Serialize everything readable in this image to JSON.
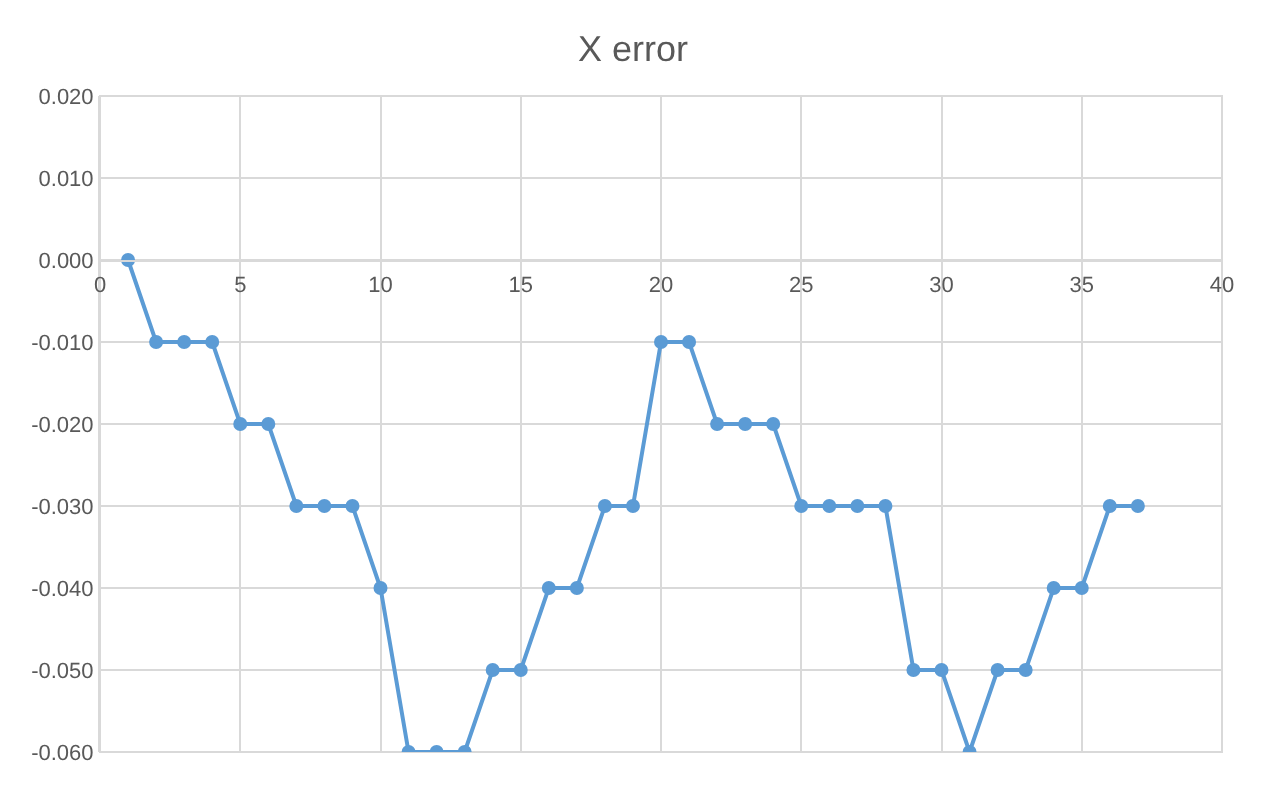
{
  "chart_data": {
    "type": "line",
    "title": "X error",
    "x": [
      1,
      2,
      3,
      4,
      5,
      6,
      7,
      8,
      9,
      10,
      11,
      12,
      13,
      14,
      15,
      16,
      17,
      18,
      19,
      20,
      21,
      22,
      23,
      24,
      25,
      26,
      27,
      28,
      29,
      30,
      31,
      32,
      33,
      34,
      35,
      36,
      37
    ],
    "series": [
      {
        "color": "#5b9bd5",
        "values": [
          0,
          -0.01,
          -0.01,
          -0.01,
          -0.02,
          -0.02,
          -0.03,
          -0.03,
          -0.03,
          -0.04,
          -0.06,
          -0.06,
          -0.06,
          -0.05,
          -0.05,
          -0.04,
          -0.04,
          -0.03,
          -0.03,
          -0.01,
          -0.01,
          -0.02,
          -0.02,
          -0.02,
          -0.03,
          -0.03,
          -0.03,
          -0.03,
          -0.05,
          -0.05,
          -0.06,
          -0.05,
          -0.05,
          -0.04,
          -0.04,
          -0.03,
          -0.03
        ]
      }
    ],
    "xlim": [
      0,
      40
    ],
    "xticks": [
      0,
      5,
      10,
      15,
      20,
      25,
      30,
      35,
      40
    ],
    "ylim": [
      -0.06,
      0.02
    ],
    "yticks": [
      {
        "value": 0.02,
        "label": "0.020"
      },
      {
        "value": 0.01,
        "label": "0.010"
      },
      {
        "value": 0,
        "label": "0.000"
      },
      {
        "value": -0.01,
        "label": "-0.010"
      },
      {
        "value": -0.02,
        "label": "-0.020"
      },
      {
        "value": -0.03,
        "label": "-0.030"
      },
      {
        "value": -0.04,
        "label": "-0.040"
      },
      {
        "value": -0.05,
        "label": "-0.050"
      },
      {
        "value": -0.06,
        "label": "-0.060"
      }
    ],
    "grid": true,
    "marker": "circle",
    "line_style": "solid"
  }
}
